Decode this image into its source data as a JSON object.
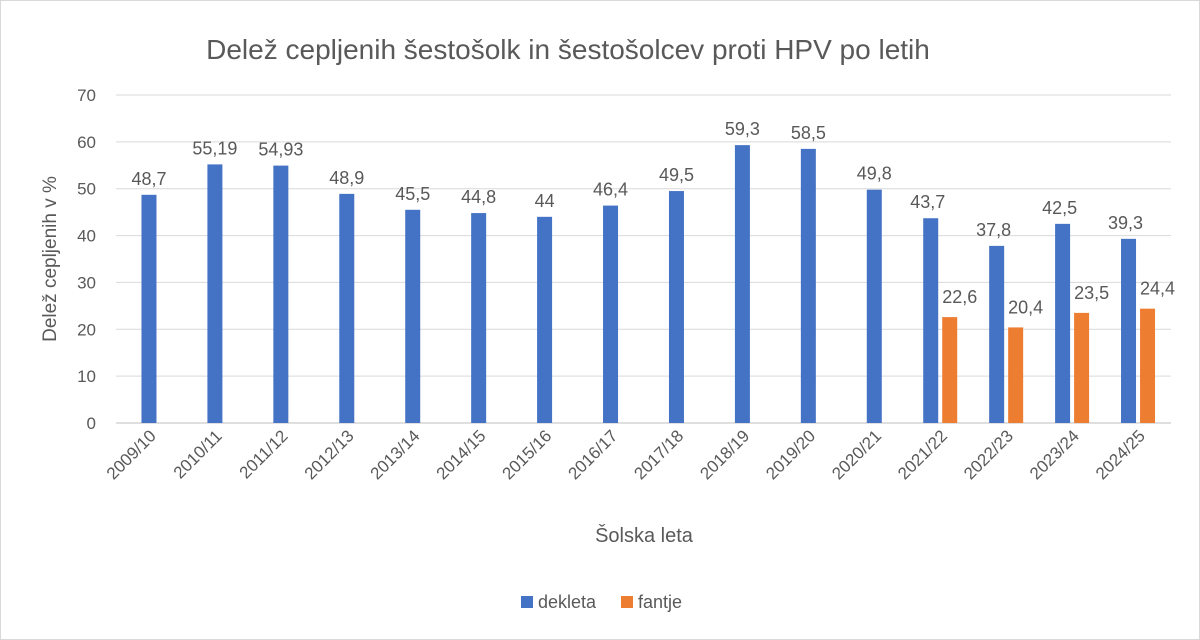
{
  "chart_data": {
    "type": "bar",
    "title": "Delež cepljenih šestošolk in šestošolcev proti HPV po letih",
    "xlabel": "Šolska leta",
    "ylabel": "Delež cepljenih v %",
    "ylim": [
      0,
      70
    ],
    "yticks": [
      0,
      10,
      20,
      30,
      40,
      50,
      60,
      70
    ],
    "grid": true,
    "legend_position": "bottom",
    "categories": [
      "2009/10",
      "2010/11",
      "2011/12",
      "2012/13",
      "2013/14",
      "2014/15",
      "2015/16",
      "2016/17",
      "2017/18",
      "2018/19",
      "2019/20",
      "2020/21",
      "2021/22",
      "2022/23",
      "2023/24",
      "2024/25"
    ],
    "series": [
      {
        "name": "dekleta",
        "color": "#4472c4",
        "values": [
          48.7,
          55.19,
          54.93,
          48.9,
          45.5,
          44.8,
          44,
          46.4,
          49.5,
          59.3,
          58.5,
          49.8,
          43.7,
          37.8,
          42.5,
          39.3
        ],
        "labels": [
          "48,7",
          "55,19",
          "54,93",
          "48,9",
          "45,5",
          "44,8",
          "44",
          "46,4",
          "49,5",
          "59,3",
          "58,5",
          "49,8",
          "43,7",
          "37,8",
          "42,5",
          "39,3"
        ]
      },
      {
        "name": "fantje",
        "color": "#ed7d31",
        "values": [
          null,
          null,
          null,
          null,
          null,
          null,
          null,
          null,
          null,
          null,
          null,
          null,
          22.6,
          20.4,
          23.5,
          24.4
        ],
        "labels": [
          null,
          null,
          null,
          null,
          null,
          null,
          null,
          null,
          null,
          null,
          null,
          null,
          "22,6",
          "20,4",
          "23,5",
          "24,4"
        ]
      }
    ]
  }
}
